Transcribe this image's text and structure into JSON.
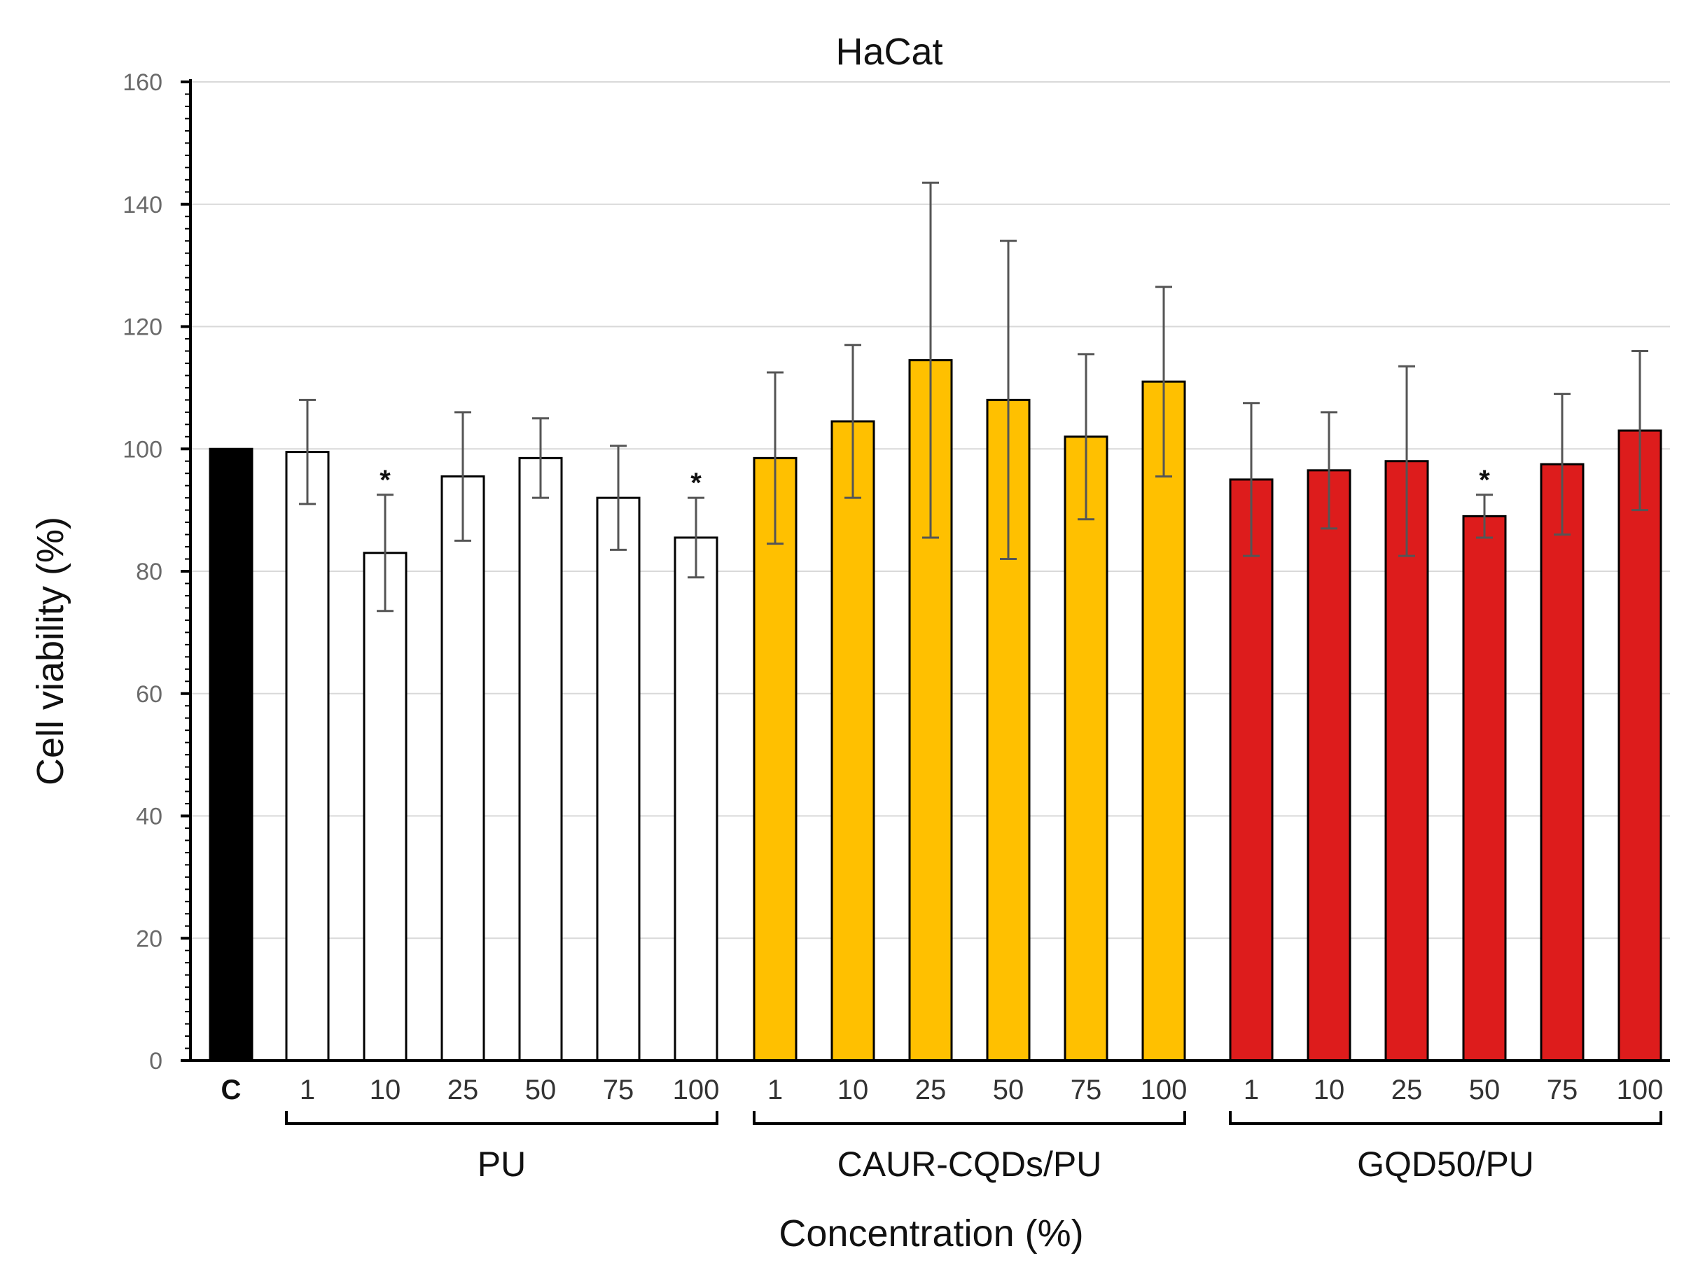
{
  "chart_data": {
    "type": "bar",
    "title": "HaCat",
    "xlabel": "Concentration (%)",
    "ylabel": "Cell viability (%)",
    "ylim": [
      0,
      160
    ],
    "yticks": [
      0,
      20,
      40,
      60,
      80,
      100,
      120,
      140,
      160
    ],
    "grid": true,
    "legend": "none",
    "significance_marker": "*",
    "control": {
      "label": "C",
      "value": 100,
      "color": "#000000"
    },
    "groups": [
      {
        "name": "PU",
        "color": "#ffffff",
        "categories": [
          "1",
          "10",
          "25",
          "50",
          "75",
          "100"
        ],
        "values": [
          99.5,
          83,
          95.5,
          98.5,
          92,
          85.5
        ],
        "errors": [
          8.5,
          9.5,
          10.5,
          6.5,
          8.5,
          6.5
        ],
        "significant": [
          false,
          true,
          false,
          false,
          false,
          true
        ]
      },
      {
        "name": "CAUR-CQDs/PU",
        "color": "#ffc000",
        "categories": [
          "1",
          "10",
          "25",
          "50",
          "75",
          "100"
        ],
        "values": [
          98.5,
          104.5,
          114.5,
          108,
          102,
          111
        ],
        "errors": [
          14,
          12.5,
          29,
          26,
          13.5,
          15.5
        ],
        "significant": [
          false,
          false,
          false,
          false,
          false,
          false
        ]
      },
      {
        "name": "GQD50/PU",
        "color": "#dd1c1c",
        "categories": [
          "1",
          "10",
          "25",
          "50",
          "75",
          "100"
        ],
        "values": [
          95,
          96.5,
          98,
          89,
          97.5,
          103
        ],
        "errors": [
          12.5,
          9.5,
          15.5,
          3.5,
          11.5,
          13
        ],
        "significant": [
          false,
          false,
          false,
          true,
          false,
          false
        ]
      }
    ]
  }
}
